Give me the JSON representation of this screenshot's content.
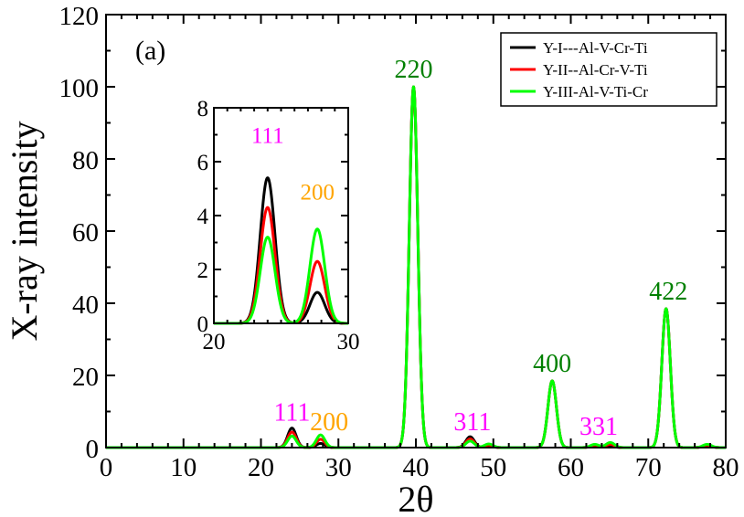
{
  "chart_data": {
    "type": "line",
    "panel_label": "(a)",
    "xlabel": "2θ",
    "ylabel": "X-ray intensity",
    "xlim": [
      0,
      80
    ],
    "ylim": [
      0,
      120
    ],
    "x_ticks": [
      0,
      10,
      20,
      30,
      40,
      50,
      60,
      70,
      80
    ],
    "y_ticks": [
      0,
      20,
      40,
      60,
      80,
      100,
      120
    ],
    "peak_width": 0.55,
    "series": [
      {
        "name": "Y-I---Al-V-Cr-Ti",
        "color": "#000000",
        "peaks": [
          [
            24.0,
            5.4
          ],
          [
            27.7,
            1.15
          ],
          [
            39.7,
            100
          ],
          [
            47.0,
            3.0
          ],
          [
            49.4,
            0.4
          ],
          [
            57.6,
            18.5
          ],
          [
            63.1,
            0.5
          ],
          [
            65.1,
            0.4
          ],
          [
            72.3,
            38.5
          ],
          [
            77.6,
            0.5
          ]
        ]
      },
      {
        "name": "Y-II--Al-Cr-V-Ti",
        "color": "#ff0000",
        "peaks": [
          [
            24.0,
            4.3
          ],
          [
            27.7,
            2.3
          ],
          [
            39.7,
            100
          ],
          [
            47.0,
            2.4
          ],
          [
            49.4,
            0.7
          ],
          [
            57.6,
            18.5
          ],
          [
            63.1,
            0.7
          ],
          [
            65.1,
            0.9
          ],
          [
            72.3,
            38.5
          ],
          [
            77.6,
            0.7
          ]
        ]
      },
      {
        "name": "Y-III-Al-V-Ti-Cr",
        "color": "#00ff00",
        "peaks": [
          [
            24.0,
            3.2
          ],
          [
            27.7,
            3.5
          ],
          [
            39.7,
            100
          ],
          [
            47.0,
            1.8
          ],
          [
            49.4,
            1.0
          ],
          [
            57.6,
            18.5
          ],
          [
            63.1,
            0.9
          ],
          [
            65.1,
            1.4
          ],
          [
            72.3,
            38.5
          ],
          [
            77.6,
            0.9
          ]
        ]
      }
    ],
    "annotations": [
      {
        "text": "111",
        "x": 24.0,
        "y": 7.5,
        "color": "#ff00ff"
      },
      {
        "text": "200",
        "x": 28.8,
        "y": 4.8,
        "color": "#ffa500"
      },
      {
        "text": "220",
        "x": 39.7,
        "y": 102.5,
        "color": "#008000"
      },
      {
        "text": "311",
        "x": 47.3,
        "y": 4.8,
        "color": "#ff00ff"
      },
      {
        "text": "400",
        "x": 57.6,
        "y": 21.0,
        "color": "#008000"
      },
      {
        "text": "331",
        "x": 63.6,
        "y": 3.6,
        "color": "#ff00ff"
      },
      {
        "text": "422",
        "x": 72.6,
        "y": 41.0,
        "color": "#008000"
      }
    ],
    "legend": {
      "position": "top-right"
    },
    "inset": {
      "xlim": [
        20,
        30
      ],
      "ylim": [
        0,
        8
      ],
      "x_ticks": [
        20,
        30
      ],
      "y_ticks": [
        0,
        2,
        4,
        6,
        8
      ],
      "annotations": [
        {
          "text": "111",
          "x": 24.0,
          "y": 6.7,
          "color": "#ff00ff"
        },
        {
          "text": "200",
          "x": 27.7,
          "y": 4.6,
          "color": "#ffa500"
        }
      ]
    }
  }
}
